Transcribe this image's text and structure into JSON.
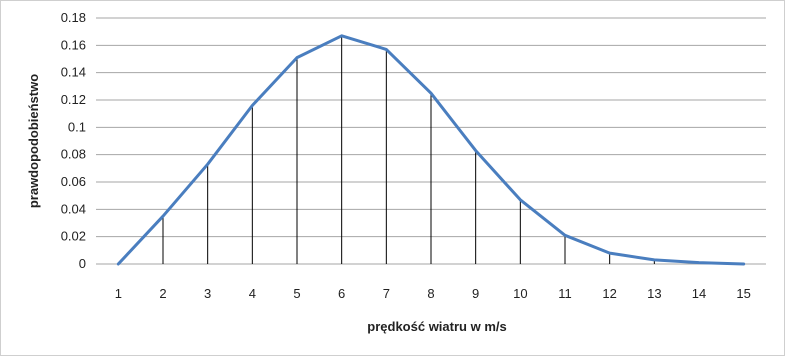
{
  "chart_data": {
    "type": "line",
    "xlabel": "prędkość wiatru w m/s",
    "ylabel": "prawdopodobieństwo",
    "x": [
      1,
      2,
      3,
      4,
      5,
      6,
      7,
      8,
      9,
      10,
      11,
      12,
      13,
      14,
      15
    ],
    "series": [
      {
        "values": [
          0.0,
          0.035,
          0.073,
          0.116,
          0.151,
          0.167,
          0.157,
          0.125,
          0.083,
          0.047,
          0.021,
          0.008,
          0.003,
          0.001,
          0.0
        ]
      }
    ],
    "ylim": [
      0,
      0.18
    ],
    "yticks": [
      "0",
      "0.02",
      "0.04",
      "0.06",
      "0.08",
      "0.1",
      "0.12",
      "0.14",
      "0.16",
      "0.18"
    ],
    "xticks": [
      "1",
      "2",
      "3",
      "4",
      "5",
      "6",
      "7",
      "8",
      "9",
      "10",
      "11",
      "12",
      "13",
      "14",
      "15"
    ],
    "grid": "horizontal",
    "drop_lines": true,
    "legend": "none",
    "colors": {
      "line": "#4a7ebf",
      "grid": "#a6a6a6",
      "drop_line": "#000000"
    }
  }
}
